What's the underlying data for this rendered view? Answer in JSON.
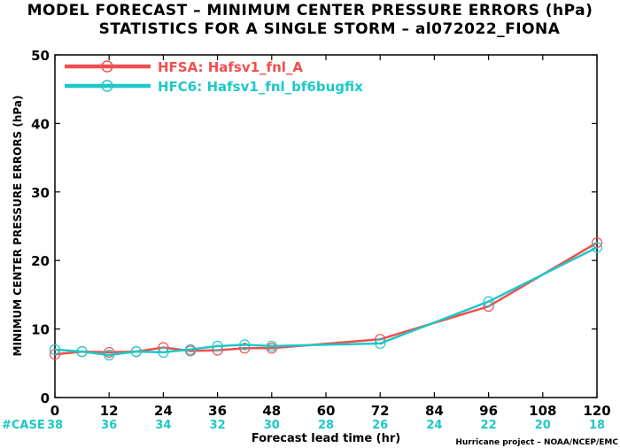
{
  "chart_data": {
    "type": "line",
    "title": "MODEL FORECAST – MINIMUM CENTER PRESSURE ERRORS (hPa)",
    "subtitle": "STATISTICS FOR A SINGLE STORM – al072022_FIONA",
    "xlabel": "Forecast lead time (hr)",
    "ylabel": "MINIMUM CENTER PRESSURE ERRORS (hPa)",
    "xlim": [
      0,
      120
    ],
    "ylim": [
      0,
      50
    ],
    "x_ticks": [
      0,
      12,
      24,
      36,
      48,
      60,
      72,
      84,
      96,
      108,
      120
    ],
    "y_ticks": [
      0,
      10,
      20,
      30,
      40,
      50
    ],
    "grid": false,
    "legend_position": "top-left",
    "case_label": "#CASE",
    "case_x": [
      0,
      12,
      24,
      36,
      48,
      60,
      72,
      84,
      96,
      108,
      120
    ],
    "case_counts": [
      38,
      36,
      34,
      32,
      30,
      28,
      26,
      24,
      22,
      20,
      18
    ],
    "credit": "Hurricane project – NOAA/NCEP/EMC",
    "series": [
      {
        "name": "HFSA: Hafsv1_fnl_A",
        "color": "#f04e50",
        "x": [
          0,
          6,
          12,
          18,
          24,
          30,
          36,
          42,
          48,
          72,
          96,
          120
        ],
        "y": [
          6.3,
          6.7,
          6.6,
          6.7,
          7.3,
          6.8,
          6.9,
          7.2,
          7.2,
          8.5,
          13.3,
          22.6
        ],
        "markers": [
          0,
          6,
          12,
          18,
          24,
          30,
          36,
          42,
          48,
          72,
          96,
          120
        ]
      },
      {
        "name": "HFC6: Hafsv1_fnl_bf6bugfix",
        "color": "#1ec8c8",
        "x": [
          0,
          6,
          12,
          18,
          24,
          30,
          36,
          42,
          48,
          72,
          96,
          120
        ],
        "y": [
          7.0,
          6.7,
          6.2,
          6.7,
          6.6,
          7.0,
          7.5,
          7.7,
          7.5,
          7.9,
          14.0,
          21.9
        ],
        "markers": [
          0,
          6,
          12,
          18,
          24,
          30,
          36,
          42,
          48,
          72,
          96,
          120
        ]
      }
    ]
  }
}
